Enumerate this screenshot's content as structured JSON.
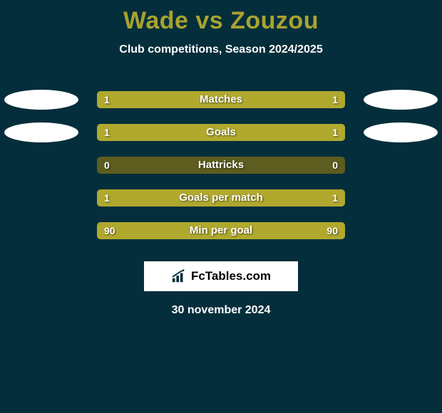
{
  "background_color": "#042e3b",
  "title": {
    "text": "Wade vs Zouzou",
    "color": "#a8a230",
    "fontsize": 34
  },
  "subtitle": {
    "text": "Club competitions, Season 2024/2025",
    "color": "#ffffff",
    "fontsize": 16
  },
  "ellipse_color": "#ffffff",
  "bar_track_color": "#5c5d1e",
  "bar_left_color": "#b0a92e",
  "bar_right_color": "#b0a92e",
  "bar_text_color": "#ffffff",
  "stats": [
    {
      "label": "Matches",
      "left_val": "1",
      "right_val": "1",
      "left_pct": 50,
      "right_pct": 50,
      "show_ellipses": true
    },
    {
      "label": "Goals",
      "left_val": "1",
      "right_val": "1",
      "left_pct": 50,
      "right_pct": 50,
      "show_ellipses": true
    },
    {
      "label": "Hattricks",
      "left_val": "0",
      "right_val": "0",
      "left_pct": 0,
      "right_pct": 0,
      "show_ellipses": false
    },
    {
      "label": "Goals per match",
      "left_val": "1",
      "right_val": "1",
      "left_pct": 50,
      "right_pct": 50,
      "show_ellipses": false
    },
    {
      "label": "Min per goal",
      "left_val": "90",
      "right_val": "90",
      "left_pct": 50,
      "right_pct": 50,
      "show_ellipses": false
    }
  ],
  "logo": {
    "text": "FcTables.com",
    "border_color": "#ffffff",
    "text_color": "#000000",
    "bg_color": "#ffffff",
    "icon_color": "#022a36"
  },
  "date": {
    "text": "30 november 2024",
    "color": "#ffffff",
    "fontsize": 16
  }
}
